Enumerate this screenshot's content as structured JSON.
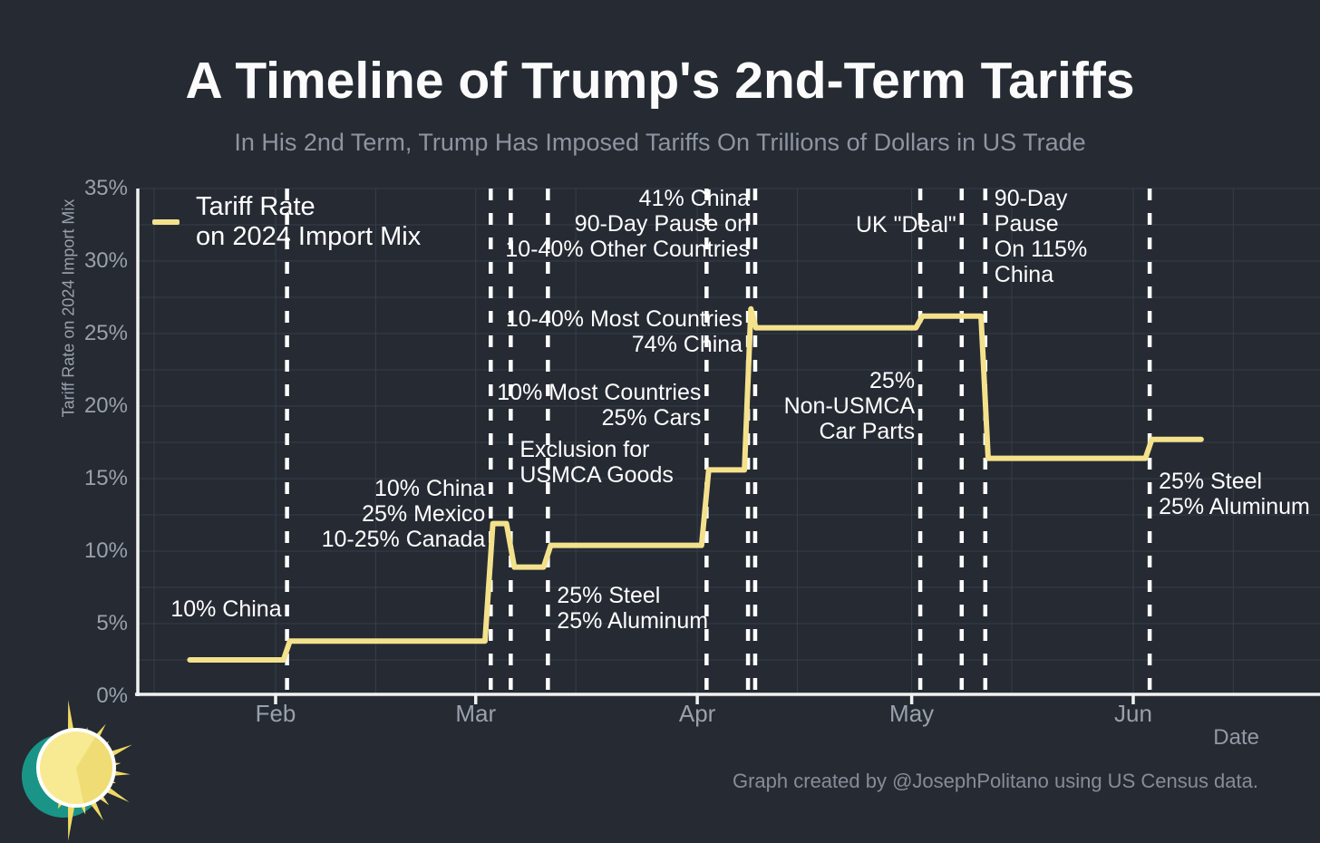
{
  "footer": "Graph created by @JosephPolitano using US Census data.",
  "legend": {
    "lines": [
      "Tariff Rate",
      "on 2024 Import Mix"
    ]
  },
  "colors": {
    "background": "#252a33",
    "line": "#f4e18c",
    "grid": "#383e49",
    "axis": "#f2f2f2",
    "event_line": "#fdfdfd",
    "tick_label": "#9aa1ac",
    "subtitle": "#8e95a0",
    "annotation": "#ffffff",
    "logo_teal": "#1a9487",
    "logo_yellow": "#f8ea92",
    "logo_wedge": "#f0dc74",
    "logo_ray": "#f0d964"
  },
  "chart_data": {
    "type": "line",
    "step": true,
    "title": "A Timeline of Trump's 2nd-Term Tariffs",
    "subtitle": "In His 2nd Term, Trump Has Imposed Tariffs On Trillions of Dollars in US Trade",
    "xlabel": "Date",
    "ylabel": "Tariff Rate on 2024 Import Mix",
    "x_unit": "days since 2025-01-01",
    "ylim": [
      0,
      35
    ],
    "grid": true,
    "legend_position": "upper left",
    "yticks": [
      {
        "value": 0,
        "label": "0%"
      },
      {
        "value": 5,
        "label": "5%"
      },
      {
        "value": 10,
        "label": "10%"
      },
      {
        "value": 15,
        "label": "15%"
      },
      {
        "value": 20,
        "label": "20%"
      },
      {
        "value": 25,
        "label": "25%"
      },
      {
        "value": 30,
        "label": "30%"
      },
      {
        "value": 35,
        "label": "35%"
      }
    ],
    "xticks": [
      {
        "day": 31,
        "label": "Feb"
      },
      {
        "day": 59,
        "label": "Mar"
      },
      {
        "day": 90,
        "label": "Apr"
      },
      {
        "day": 120,
        "label": "May"
      },
      {
        "day": 151,
        "label": "Jun"
      }
    ],
    "series": [
      {
        "name": "Tariff Rate on 2024 Import Mix",
        "points": [
          [
            19,
            2.5
          ],
          [
            32.1,
            2.5
          ],
          [
            33.0,
            3.8
          ],
          [
            60.3,
            3.8
          ],
          [
            61.4,
            11.9
          ],
          [
            63.3,
            11.9
          ],
          [
            64.4,
            8.9
          ],
          [
            68.5,
            8.9
          ],
          [
            69.5,
            10.4
          ],
          [
            90.6,
            10.4
          ],
          [
            91.6,
            15.6
          ],
          [
            96.6,
            15.6
          ],
          [
            97.5,
            26.7
          ],
          [
            98.2,
            25.4
          ],
          [
            120.6,
            25.4
          ],
          [
            121.5,
            26.2
          ],
          [
            129.7,
            26.2
          ],
          [
            130.7,
            16.4
          ],
          [
            152.7,
            16.4
          ],
          [
            153.6,
            17.7
          ],
          [
            160.5,
            17.7
          ]
        ]
      }
    ],
    "events": [
      {
        "date": "Feb 4",
        "day": 32.6,
        "align": "right",
        "top_pct": 6.9,
        "lines": [
          "10% China"
        ]
      },
      {
        "date": "Mar 4",
        "day": 61.1,
        "align": "right",
        "top_pct": 15.2,
        "lines": [
          "10% China",
          "25% Mexico",
          "10-25% Canada"
        ]
      },
      {
        "date": "Mar 7",
        "day": 63.9,
        "align": "left",
        "top_pct": 17.9,
        "lines": [
          "Exclusion for",
          "USMCA Goods"
        ]
      },
      {
        "date": "Mar 12",
        "day": 69.1,
        "align": "left",
        "top_pct": 7.8,
        "lines": [
          "25% Steel",
          "25% Aluminum"
        ]
      },
      {
        "date": "Apr 3",
        "day": 91.3,
        "align": "right",
        "top_pct": 21.8,
        "lines": [
          "10% Most Countries",
          "25% Cars"
        ]
      },
      {
        "date": "Apr 9",
        "day": 97.1,
        "align": "right",
        "top_pct": 26.9,
        "lines": [
          "10-40% Most Countries",
          "74% China"
        ]
      },
      {
        "date": "Apr 9",
        "day": 98.1,
        "align": "right",
        "top_pct": 35.2,
        "lines": [
          "41% China",
          "90-Day Pause on",
          "10-40% Other Countries"
        ]
      },
      {
        "date": "May 3",
        "day": 121.2,
        "align": "right",
        "top_pct": 22.6,
        "lines": [
          "25%",
          "Non-USMCA",
          "Car Parts"
        ]
      },
      {
        "date": "May 8",
        "day": 127.0,
        "align": "right",
        "top_pct": 33.4,
        "lines": [
          "UK \"Deal\""
        ]
      },
      {
        "date": "May 12",
        "day": 130.3,
        "align": "left",
        "top_pct": 35.2,
        "lines": [
          "90-Day",
          "Pause",
          "On 115%",
          "China"
        ]
      },
      {
        "date": "Jun 4",
        "day": 153.3,
        "align": "left",
        "top_pct": 15.7,
        "lines": [
          "25% Steel",
          "25% Aluminum"
        ]
      }
    ]
  }
}
